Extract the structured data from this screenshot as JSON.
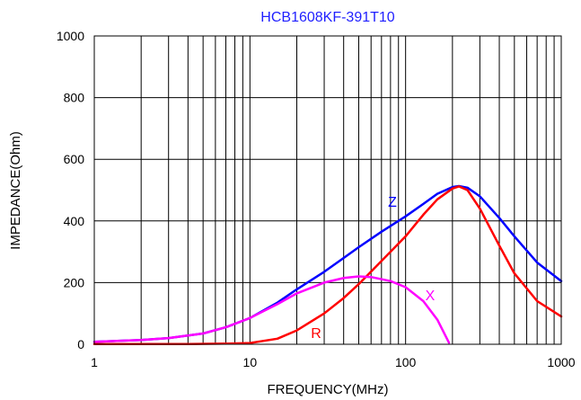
{
  "chart_data": {
    "type": "line",
    "title": "HCB1608KF-391T10",
    "xlabel": "FREQUENCY(MHz)",
    "ylabel": "IMPEDANCE(Ohm)",
    "x_scale": "log",
    "xlim": [
      1,
      1000
    ],
    "ylim": [
      0,
      1000
    ],
    "x_ticks": [
      "1",
      "10",
      "100",
      "1000"
    ],
    "x_tick_values": [
      1,
      10,
      100,
      1000
    ],
    "y_ticks": [
      "0",
      "200",
      "400",
      "600",
      "800",
      "1000"
    ],
    "y_tick_values": [
      0,
      200,
      400,
      600,
      800,
      1000
    ],
    "grid": true,
    "title_color": "#1f1fff",
    "series": [
      {
        "name": "Z",
        "color": "#0000ff",
        "points": [
          [
            1,
            8
          ],
          [
            2,
            14
          ],
          [
            3,
            20
          ],
          [
            5,
            35
          ],
          [
            7,
            55
          ],
          [
            10,
            85
          ],
          [
            15,
            135
          ],
          [
            20,
            178
          ],
          [
            30,
            235
          ],
          [
            40,
            280
          ],
          [
            50,
            315
          ],
          [
            70,
            365
          ],
          [
            100,
            415
          ],
          [
            130,
            455
          ],
          [
            160,
            488
          ],
          [
            200,
            510
          ],
          [
            220,
            513
          ],
          [
            250,
            508
          ],
          [
            300,
            480
          ],
          [
            400,
            410
          ],
          [
            500,
            350
          ],
          [
            700,
            265
          ],
          [
            1000,
            205
          ]
        ]
      },
      {
        "name": "R",
        "color": "#ff0000",
        "points": [
          [
            1,
            1
          ],
          [
            2,
            1
          ],
          [
            4,
            1
          ],
          [
            7,
            2
          ],
          [
            10,
            4
          ],
          [
            15,
            18
          ],
          [
            20,
            45
          ],
          [
            30,
            100
          ],
          [
            40,
            150
          ],
          [
            50,
            195
          ],
          [
            70,
            270
          ],
          [
            100,
            350
          ],
          [
            130,
            420
          ],
          [
            160,
            470
          ],
          [
            200,
            505
          ],
          [
            220,
            512
          ],
          [
            250,
            500
          ],
          [
            300,
            440
          ],
          [
            400,
            320
          ],
          [
            500,
            230
          ],
          [
            700,
            140
          ],
          [
            1000,
            90
          ]
        ]
      },
      {
        "name": "X",
        "color": "#ff00ff",
        "points": [
          [
            1,
            8
          ],
          [
            2,
            14
          ],
          [
            3,
            20
          ],
          [
            5,
            35
          ],
          [
            7,
            55
          ],
          [
            10,
            85
          ],
          [
            15,
            130
          ],
          [
            20,
            165
          ],
          [
            30,
            200
          ],
          [
            40,
            215
          ],
          [
            50,
            220
          ],
          [
            60,
            218
          ],
          [
            80,
            205
          ],
          [
            100,
            185
          ],
          [
            130,
            140
          ],
          [
            160,
            80
          ],
          [
            190,
            5
          ]
        ]
      }
    ]
  }
}
